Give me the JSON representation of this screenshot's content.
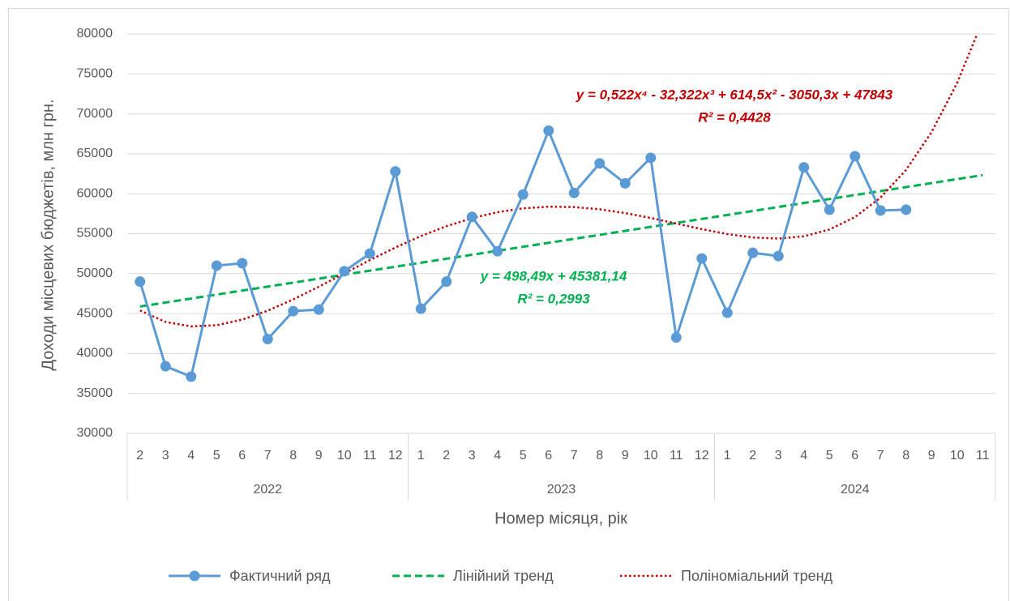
{
  "chart_data": {
    "type": "line",
    "x_label": "Номер місяця, рік",
    "y_label": "Доходи місцевих бюджетів, млн грн.",
    "category_groups": [
      {
        "name": "2022",
        "categories": [
          "2",
          "3",
          "4",
          "5",
          "6",
          "7",
          "8",
          "9",
          "10",
          "11",
          "12"
        ]
      },
      {
        "name": "2023",
        "categories": [
          "1",
          "2",
          "3",
          "4",
          "5",
          "6",
          "7",
          "8",
          "9",
          "10",
          "11",
          "12"
        ]
      },
      {
        "name": "2024",
        "categories": [
          "1",
          "2",
          "3",
          "4",
          "5",
          "6",
          "7",
          "8",
          "9",
          "10",
          "11"
        ]
      }
    ],
    "ylim": [
      30000,
      80000
    ],
    "yticks": [
      30000,
      35000,
      40000,
      45000,
      50000,
      55000,
      60000,
      65000,
      70000,
      75000,
      80000
    ],
    "grid": true,
    "legend": "bottom",
    "series": [
      {
        "name": "Фактичний ряд",
        "color": "#5b9bd5",
        "style": "solid-markers",
        "values": [
          49000,
          38400,
          37100,
          51000,
          51300,
          41800,
          45300,
          45500,
          50300,
          52500,
          62800,
          45600,
          49000,
          57100,
          52800,
          59900,
          67900,
          60100,
          63800,
          61300,
          64500,
          42000,
          51900,
          45100,
          52600,
          52200,
          63300,
          58000,
          64700,
          57900,
          58000,
          null,
          null,
          null
        ]
      },
      {
        "name": "Лінійний тренд",
        "color": "#00b050",
        "style": "dashed",
        "values": [
          45880,
          46378,
          46877,
          47375,
          47874,
          48372,
          48871,
          49369,
          49868,
          50366,
          50865,
          51363,
          51862,
          52360,
          52858,
          53357,
          53855,
          54354,
          54852,
          55351,
          55849,
          56348,
          56846,
          57345,
          57843,
          58342,
          58840,
          59339,
          59837,
          60336,
          60834,
          61333,
          61831,
          62330
        ]
      },
      {
        "name": "Поліноміальний тренд",
        "color": "#c00000",
        "style": "dotted",
        "values": [
          45375,
          43950,
          43392,
          43539,
          44240,
          45358,
          46768,
          48358,
          50027,
          51688,
          53266,
          54699,
          55937,
          56942,
          57691,
          58169,
          58378,
          58331,
          58053,
          57581,
          56966,
          56271,
          55572,
          54956,
          54523,
          54387,
          54674,
          55521,
          57078,
          59510,
          62992,
          67711,
          73869,
          81678
        ]
      }
    ],
    "annotations": [
      {
        "text": "y = 0,522x⁴ - 32,322x³ + 614,5x² - 3050,3x + 47843",
        "color": "#c00000"
      },
      {
        "text": "R² = 0,4428",
        "color": "#c00000"
      },
      {
        "text": "y = 498,49x + 45381,14",
        "color": "#00b050"
      },
      {
        "text": "R² = 0,2993",
        "color": "#00b050"
      }
    ]
  }
}
